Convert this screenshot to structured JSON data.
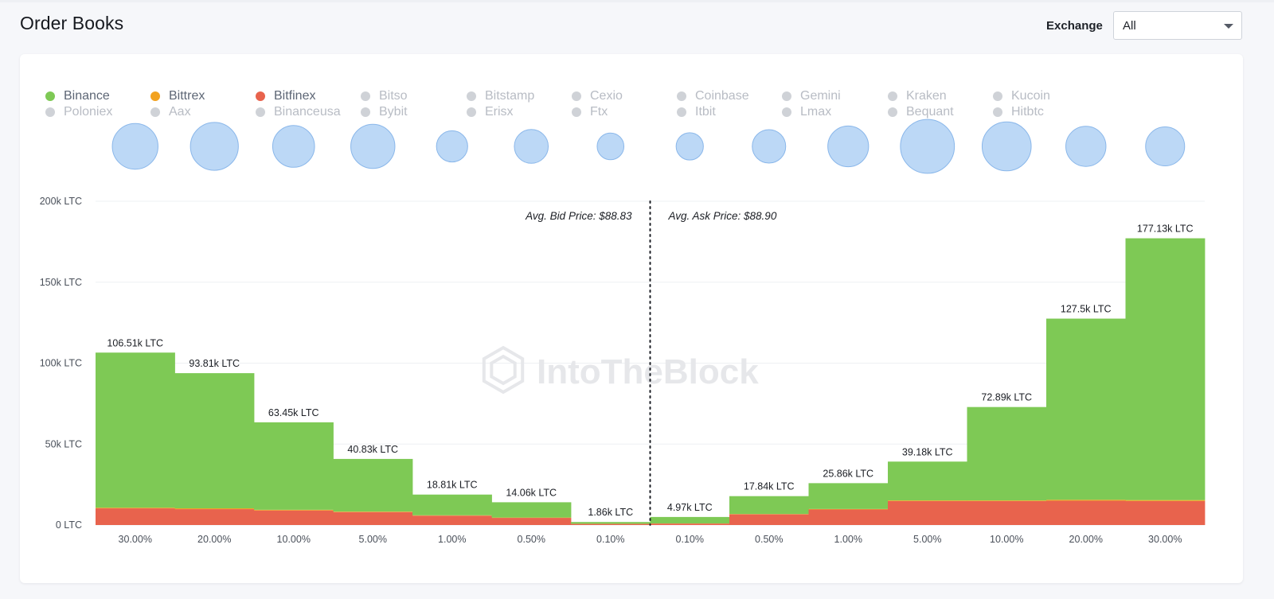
{
  "header": {
    "title": "Order Books",
    "exchange_label": "Exchange",
    "exchange_value": "All"
  },
  "legend": [
    {
      "name": "Binance",
      "active": true,
      "color": "#7ec955"
    },
    {
      "name": "Bittrex",
      "active": true,
      "color": "#f2a21f"
    },
    {
      "name": "Bitfinex",
      "active": true,
      "color": "#e8634d"
    },
    {
      "name": "Bitso",
      "active": false
    },
    {
      "name": "Bitstamp",
      "active": false
    },
    {
      "name": "Cexio",
      "active": false
    },
    {
      "name": "Coinbase",
      "active": false
    },
    {
      "name": "Gemini",
      "active": false
    },
    {
      "name": "Kraken",
      "active": false
    },
    {
      "name": "Kucoin",
      "active": false
    },
    {
      "name": "Poloniex",
      "active": false
    },
    {
      "name": "Aax",
      "active": false
    },
    {
      "name": "Binanceusa",
      "active": false
    },
    {
      "name": "Bybit",
      "active": false
    },
    {
      "name": "Erisx",
      "active": false
    },
    {
      "name": "Ftx",
      "active": false
    },
    {
      "name": "Itbit",
      "active": false
    },
    {
      "name": "Lmax",
      "active": false
    },
    {
      "name": "Bequant",
      "active": false
    },
    {
      "name": "Hitbtc",
      "active": false
    }
  ],
  "colors": {
    "active_legend_text": "#5d6675",
    "inactive_legend_text": "#b8bcc4",
    "inactive_dot": "#cfd2d7",
    "bubble_fill": "#bcd8f6",
    "bubble_stroke": "#8ab7ea",
    "grid": "#eef0f3",
    "axis_text": "#4a505a",
    "watermark": "#e6e7ea"
  },
  "watermark": "IntoTheBlock",
  "chart_data": {
    "type": "bar",
    "stacked": true,
    "categories": [
      "30.00%",
      "20.00%",
      "10.00%",
      "5.00%",
      "1.00%",
      "0.50%",
      "0.10%",
      "0.10%",
      "0.50%",
      "1.00%",
      "5.00%",
      "10.00%",
      "20.00%",
      "30.00%"
    ],
    "side": [
      "bid",
      "bid",
      "bid",
      "bid",
      "bid",
      "bid",
      "bid",
      "ask",
      "ask",
      "ask",
      "ask",
      "ask",
      "ask",
      "ask"
    ],
    "series": [
      {
        "name": "Bitfinex",
        "color": "#e8634d",
        "values": [
          10300,
          9800,
          9000,
          8000,
          5800,
          4400,
          700,
          900,
          6600,
          9600,
          14800,
          14800,
          15000,
          14800
        ]
      },
      {
        "name": "Bittrex",
        "color": "#f2a21f",
        "values": [
          400,
          500,
          400,
          300,
          200,
          200,
          50,
          70,
          200,
          300,
          400,
          400,
          600,
          600
        ]
      },
      {
        "name": "Binance",
        "color": "#7ec955",
        "values": [
          95810,
          83510,
          54050,
          32530,
          12810,
          9460,
          1110,
          4000,
          11040,
          15960,
          23980,
          57690,
          111900,
          161730
        ]
      }
    ],
    "totals": [
      106510,
      93810,
      63450,
      40830,
      18810,
      14060,
      1860,
      4970,
      17840,
      25860,
      39180,
      72890,
      127500,
      177130
    ],
    "data_labels": [
      "106.51k LTC",
      "93.81k LTC",
      "63.45k LTC",
      "40.83k LTC",
      "18.81k LTC",
      "14.06k LTC",
      "1.86k LTC",
      "4.97k LTC",
      "17.84k LTC",
      "25.86k LTC",
      "39.18k LTC",
      "72.89k LTC",
      "127.5k LTC",
      "177.13k LTC"
    ],
    "bubbles": [
      0.82,
      0.86,
      0.75,
      0.79,
      0.56,
      0.61,
      0.48,
      0.49,
      0.6,
      0.73,
      0.97,
      0.88,
      0.72,
      0.7
    ],
    "yticks": [
      0,
      50000,
      100000,
      150000,
      200000
    ],
    "ytick_labels": [
      "0 LTC",
      "50k LTC",
      "100k LTC",
      "150k LTC",
      "200k LTC"
    ],
    "ylim": [
      0,
      200000
    ],
    "annotations": {
      "bid": "Avg. Bid Price: $88.83",
      "ask": "Avg. Ask Price: $88.90"
    },
    "grid": true,
    "legend_position": "top"
  }
}
